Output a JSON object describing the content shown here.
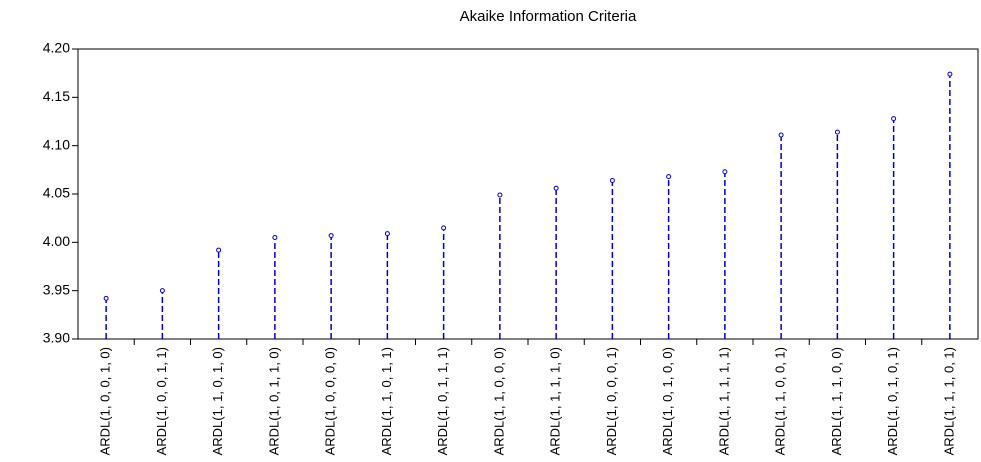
{
  "chart_data": {
    "type": "lollipop",
    "title": "Akaike Information Criteria",
    "categories": [
      "ARDL(1, 0, 0, 1, 0)",
      "ARDL(1, 0, 0, 1, 1)",
      "ARDL(1, 1, 0, 1, 0)",
      "ARDL(1, 0, 1, 1, 0)",
      "ARDL(1, 0, 0, 0, 0)",
      "ARDL(1, 1, 0, 1, 1)",
      "ARDL(1, 0, 1, 1, 1)",
      "ARDL(1, 1, 0, 0, 0)",
      "ARDL(1, 1, 1, 1, 0)",
      "ARDL(1, 0, 0, 0, 1)",
      "ARDL(1, 0, 1, 0, 0)",
      "ARDL(1, 1, 1, 1, 1)",
      "ARDL(1, 1, 0, 0, 1)",
      "ARDL(1, 1, 1, 0, 0)",
      "ARDL(1, 0, 1, 0, 1)",
      "ARDL(1, 1, 1, 0, 1)"
    ],
    "values": [
      3.942,
      3.95,
      3.992,
      4.005,
      4.007,
      4.009,
      4.015,
      4.049,
      4.056,
      4.064,
      4.068,
      4.073,
      4.111,
      4.114,
      4.128,
      4.174
    ],
    "color": "#0000cc",
    "ylim": [
      3.9,
      4.2
    ],
    "yticks": [
      {
        "value": 3.9,
        "label": "3.90"
      },
      3.95,
      {
        "value": 4.0,
        "label": "4.00"
      },
      4.05,
      {
        "value": 4.1,
        "label": "4.10"
      },
      4.15,
      {
        "value": 4.2,
        "label": "4.20"
      }
    ]
  }
}
